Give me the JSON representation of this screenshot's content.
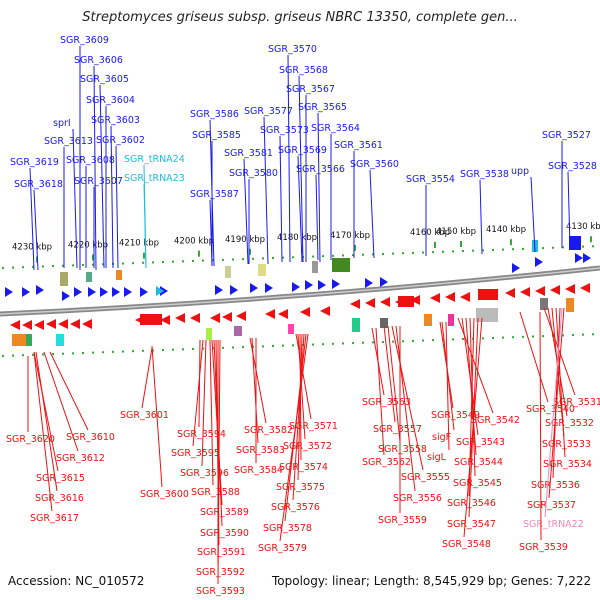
{
  "title": "Streptomyces griseus subsp. griseus NBRC 13350, complete gen...",
  "footer": {
    "accession": "Accession: NC_010572",
    "stats": "Topology: linear; Length: 8,545,929 bp; Genes: 7,222"
  },
  "colors": {
    "forward_gene": "#1a1aee",
    "reverse_gene": "#ee1111",
    "trna_forward": "#22bbdd",
    "trna_reverse": "#ee88bb",
    "backbone": "#888888",
    "scale_ticks": "#33aa33"
  },
  "scale_ticks": [
    "4230 kbp",
    "4220 kbp",
    "4210 kbp",
    "4200 kbp",
    "4190 kbp",
    "4180 kbp",
    "4170 kbp",
    "4160 kbp",
    "4150 kbp",
    "4140 kbp",
    "4130 kbp"
  ],
  "top_labels": [
    "SGR_3609",
    "SGR_3606",
    "SGR_3605",
    "SGR_3604",
    "SGR_3603",
    "sprI",
    "SGR_3613",
    "SGR_3602",
    "SGR_3619",
    "SGR_3608",
    "SGR_tRNA24",
    "SGR_3618",
    "SGR_3607",
    "SGR_tRNA23",
    "SGR_3586",
    "SGR_3585",
    "SGR_3587",
    "SGR_3581",
    "SGR_3580",
    "SGR_3570",
    "SGR_3568",
    "SGR_3567",
    "SGR_3565",
    "SGR_3577",
    "SGR_3564",
    "SGR_3573",
    "SGR_3569",
    "SGR_3561",
    "SGR_3566",
    "SGR_3560",
    "SGR_3554",
    "SGR_3538",
    "upp",
    "SGR_3527",
    "SGR_3528"
  ],
  "bottom_labels": [
    "SGR_3601",
    "SGR_3620",
    "SGR_3610",
    "SGR_3612",
    "SGR_3615",
    "SGR_3616",
    "SGR_3617",
    "SGR_3600",
    "SGR_3594",
    "SGR_3595",
    "SGR_3596",
    "SGR_3588",
    "SGR_3589",
    "SGR_3590",
    "SGR_3591",
    "SGR_3592",
    "SGR_3593",
    "SGR_3582",
    "SGR_3583",
    "SGR_3584",
    "SGR_3571",
    "SGR_3572",
    "SGR_3574",
    "SGR_3575",
    "SGR_3576",
    "SGR_3578",
    "SGR_3579",
    "SGR_3563",
    "SGR_3562",
    "SGR_3557",
    "SGR_3558",
    "SGR_3555",
    "SGR_3556",
    "SGR_3559",
    "SGR_3549",
    "sigF",
    "sigL",
    "SGR_3542",
    "SGR_3543",
    "SGR_3544",
    "SGR_3545",
    "SGR_3546",
    "SGR_3547",
    "SGR_3548",
    "SGR_3540",
    "SGR_3531",
    "SGR_3532",
    "SGR_3533",
    "SGR_3534",
    "SGR_3536",
    "SGR_3537",
    "SGR_tRNA22",
    "SGR_3539"
  ]
}
